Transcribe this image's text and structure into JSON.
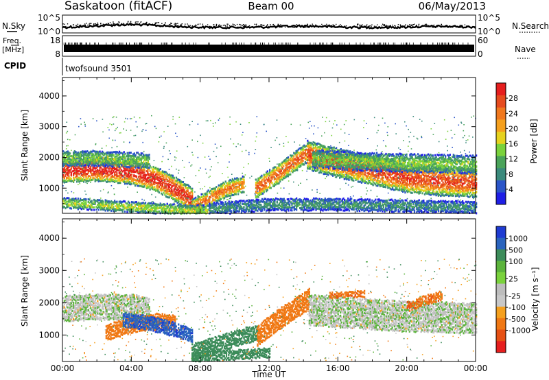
{
  "header": {
    "station": "Saskatoon (fitACF)",
    "beam": "Beam 00",
    "date": "06/May/2013"
  },
  "status_panels": {
    "nsky_label": "N.Sky",
    "nsearch_label": "N.Search",
    "noise_ticks": [
      "10^5",
      "10^0"
    ],
    "freq_label": "Freq.",
    "freq_unit": "[MHz]",
    "freq_ticks": [
      "18",
      "8"
    ],
    "nave_label": "Nave",
    "nave_ticks": [
      "60",
      "0"
    ],
    "cpid_label": "CPID",
    "cpid_value": "twofsound 3501"
  },
  "colors": {
    "power_scale": [
      "#1f1fe6",
      "#2a55c8",
      "#3b8a7c",
      "#4aa35a",
      "#7ad23c",
      "#e6d21e",
      "#f5a01e",
      "#f0781e",
      "#e64b1e",
      "#e61e1e"
    ],
    "velocity_scale": [
      "#1f3cd2",
      "#2a64be",
      "#3c8c5a",
      "#5cb43c",
      "#7ad23c",
      "#bdbdbd",
      "#c8c8c8",
      "#f5a01e",
      "#f07814",
      "#e65014",
      "#e61e1e"
    ]
  },
  "chart_data": [
    {
      "type": "heatmap",
      "name": "power-panel",
      "ylabel": "Slant Range [km]",
      "yticks": [
        "4000",
        "3000",
        "2000",
        "1000"
      ],
      "ylim": [
        180,
        4600
      ],
      "xlim": [
        0,
        24
      ],
      "colorbar": {
        "label": "Power [dB]",
        "ticks": [
          "28",
          "24",
          "20",
          "16",
          "12",
          "8",
          "4"
        ],
        "range": [
          0,
          32
        ]
      },
      "bands": [
        {
          "x": [
            0.0,
            2.0,
            4.0,
            5.5,
            6.5,
            7.5
          ],
          "y": [
            1600,
            1650,
            1550,
            1300,
            1000,
            650
          ],
          "width": 800,
          "peak_db": 30
        },
        {
          "x": [
            0.0,
            2.0,
            4.0,
            5.0
          ],
          "y": [
            2000,
            2000,
            1950,
            1900
          ],
          "width": 500,
          "peak_db": 14
        },
        {
          "x": [
            7.5,
            8.5,
            9.5,
            10.5
          ],
          "y": [
            400,
            700,
            1000,
            1150
          ],
          "width": 550,
          "peak_db": 24
        },
        {
          "x": [
            11.2,
            12.5,
            13.5,
            14.2
          ],
          "y": [
            1000,
            1500,
            1900,
            2200
          ],
          "width": 650,
          "peak_db": 26
        },
        {
          "x": [
            14.2,
            16.0,
            18.0,
            20.0,
            22.0,
            24.0
          ],
          "y": [
            2100,
            1850,
            1600,
            1350,
            1250,
            1200
          ],
          "width": 950,
          "peak_db": 28
        },
        {
          "x": [
            14.5,
            17.0,
            20.0,
            24.0
          ],
          "y": [
            2000,
            1900,
            1850,
            1800
          ],
          "width": 600,
          "peak_db": 14
        },
        {
          "x": [
            0.0,
            4.0,
            7.0,
            8.5
          ],
          "y": [
            550,
            420,
            320,
            300
          ],
          "width": 350,
          "peak_db": 16
        },
        {
          "x": [
            8.5,
            12.0,
            16.0,
            20.0,
            24.0
          ],
          "y": [
            350,
            500,
            500,
            450,
            400
          ],
          "width": 400,
          "peak_db": 9
        }
      ]
    },
    {
      "type": "heatmap",
      "name": "velocity-panel",
      "ylabel": "Slant Range [km]",
      "yticks": [
        "4000",
        "3000",
        "2000",
        "1000"
      ],
      "ylim": [
        180,
        4600
      ],
      "xlim": [
        0,
        24
      ],
      "xticks": [
        "00:00",
        "04:00",
        "08:00",
        "12:00",
        "16:00",
        "20:00",
        "00:00"
      ],
      "xlabel": "Time UT",
      "colorbar": {
        "label": "Velocity [m s⁻¹]",
        "ticks": [
          "1000",
          "500",
          "100",
          "25",
          "-25",
          "-100",
          "-500",
          "-1000"
        ]
      },
      "bands": [
        {
          "x": [
            0.0,
            2.0,
            4.0,
            5.0
          ],
          "y": [
            1850,
            1900,
            1900,
            1800
          ],
          "width": 800,
          "vel": 0
        },
        {
          "x": [
            2.5,
            4.0,
            5.5,
            6.5
          ],
          "y": [
            1100,
            1350,
            1450,
            1400
          ],
          "width": 500,
          "vel": -300
        },
        {
          "x": [
            3.5,
            5.0,
            6.5,
            7.5
          ],
          "y": [
            1500,
            1400,
            1200,
            1000
          ],
          "width": 450,
          "vel": 600
        },
        {
          "x": [
            7.5,
            9.0,
            10.5,
            11.3
          ],
          "y": [
            500,
            750,
            1000,
            1100
          ],
          "width": 500,
          "vel": 150
        },
        {
          "x": [
            11.3,
            12.5,
            13.5,
            14.3
          ],
          "y": [
            1000,
            1500,
            1850,
            2150
          ],
          "width": 650,
          "vel": -300
        },
        {
          "x": [
            14.3,
            17.0,
            20.0,
            24.0
          ],
          "y": [
            1800,
            1700,
            1600,
            1550
          ],
          "width": 950,
          "vel": 0
        },
        {
          "x": [
            20.0,
            21.0,
            22.0
          ],
          "y": [
            1900,
            2100,
            2250
          ],
          "width": 300,
          "vel": -400
        },
        {
          "x": [
            15.5,
            16.5,
            17.5
          ],
          "y": [
            2250,
            2300,
            2300
          ],
          "width": 200,
          "vel": -400
        },
        {
          "x": [
            7.5,
            10.0,
            12.0
          ],
          "y": [
            350,
            420,
            480
          ],
          "width": 300,
          "vel": 120
        }
      ]
    }
  ]
}
